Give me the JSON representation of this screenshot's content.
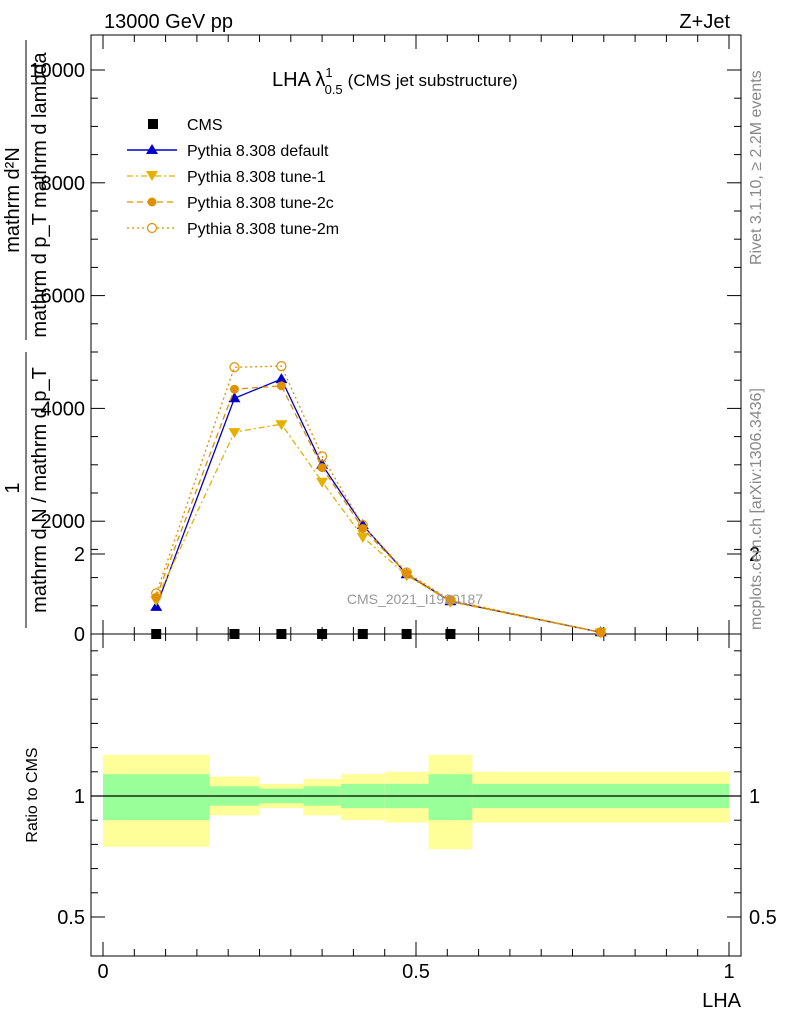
{
  "header": {
    "energy_label": "13000 GeV pp",
    "process_label": "Z+Jet"
  },
  "side_labels": {
    "rivet": "Rivet 3.1.10, ≥ 2.2M events",
    "mcplots": "mcplots.cern.ch [arXiv:1306.3436]"
  },
  "chart_data": [
    {
      "type": "line",
      "title": "LHA λ",
      "title_sup": "1",
      "title_sub": "0.5",
      "title_suffix": "(CMS jet substructure)",
      "watermark": "CMS_2021_I1920187",
      "ylabel_numerator": "1",
      "ylabel_denominator": "mathrm d N / mathrm d p_T",
      "ylabel_line1": "mathrm d²N",
      "ylabel_line2": "mathrm d p_T mathrm d lambda",
      "ylim": [
        0,
        10000
      ],
      "yticks": [
        {
          "value": 0,
          "label": "0"
        },
        {
          "value": 2000,
          "label": "2000"
        },
        {
          "value": 4000,
          "label": "4000"
        },
        {
          "value": 6000,
          "label": "6000"
        },
        {
          "value": 8000,
          "label": "8000"
        },
        {
          "value": 10000,
          "label": "10000"
        }
      ],
      "xlim": [
        -0.02,
        1.02
      ],
      "legend_position": "top-left",
      "series": [
        {
          "name": "CMS",
          "color": "#000000",
          "marker": "square",
          "dash": "",
          "x": [
            0.085,
            0.21,
            0.285,
            0.35,
            0.415,
            0.485,
            0.555
          ],
          "y": [
            0,
            0,
            0,
            0,
            0,
            0,
            0
          ]
        },
        {
          "name": "Pythia 8.308 default",
          "color": "#0000cc",
          "marker": "triangle-up",
          "dash": "",
          "x": [
            0.085,
            0.21,
            0.285,
            0.35,
            0.415,
            0.485,
            0.555,
            0.795
          ],
          "y": [
            480,
            4180,
            4520,
            3000,
            1930,
            1060,
            580,
            30
          ]
        },
        {
          "name": "Pythia 8.308 tune-1",
          "color": "#e6b000",
          "marker": "triangle-down",
          "dash": "6,3,2,3",
          "x": [
            0.085,
            0.21,
            0.285,
            0.35,
            0.415,
            0.485,
            0.555,
            0.795
          ],
          "y": [
            600,
            3580,
            3720,
            2700,
            1720,
            1040,
            570,
            30
          ]
        },
        {
          "name": "Pythia 8.308 tune-2c",
          "color": "#e09000",
          "marker": "circle",
          "dash": "6,4",
          "x": [
            0.085,
            0.21,
            0.285,
            0.35,
            0.415,
            0.485,
            0.555,
            0.795
          ],
          "y": [
            650,
            4340,
            4400,
            2950,
            1870,
            1070,
            590,
            30
          ]
        },
        {
          "name": "Pythia 8.308 tune-2m",
          "color": "#e09000",
          "marker": "circle-open",
          "dash": "2,3",
          "x": [
            0.085,
            0.21,
            0.285,
            0.35,
            0.415,
            0.485,
            0.555,
            0.795
          ],
          "y": [
            720,
            4730,
            4750,
            3150,
            1930,
            1090,
            600,
            30
          ]
        }
      ]
    },
    {
      "type": "area",
      "ylabel": "Ratio to CMS",
      "xlabel": "LHA",
      "ylim": [
        0.35,
        2.3
      ],
      "yticks": [
        {
          "value": 0.5,
          "label": "0.5"
        },
        {
          "value": 1,
          "label": "1"
        },
        {
          "value": 2,
          "label": "2"
        }
      ],
      "xticks": [
        {
          "value": 0,
          "label": "0"
        },
        {
          "value": 0.5,
          "label": "0.5"
        },
        {
          "value": 1,
          "label": "1"
        }
      ],
      "bins": [
        {
          "lo": 0.0,
          "hi": 0.17,
          "stat_lo": 0.9,
          "stat_hi": 1.09,
          "tot_lo": 0.79,
          "tot_hi": 1.17
        },
        {
          "lo": 0.17,
          "hi": 0.25,
          "stat_lo": 0.96,
          "stat_hi": 1.04,
          "tot_lo": 0.92,
          "tot_hi": 1.08
        },
        {
          "lo": 0.25,
          "hi": 0.32,
          "stat_lo": 0.97,
          "stat_hi": 1.03,
          "tot_lo": 0.95,
          "tot_hi": 1.05
        },
        {
          "lo": 0.32,
          "hi": 0.38,
          "stat_lo": 0.96,
          "stat_hi": 1.04,
          "tot_lo": 0.92,
          "tot_hi": 1.07
        },
        {
          "lo": 0.38,
          "hi": 0.45,
          "stat_lo": 0.95,
          "stat_hi": 1.05,
          "tot_lo": 0.9,
          "tot_hi": 1.09
        },
        {
          "lo": 0.45,
          "hi": 0.52,
          "stat_lo": 0.95,
          "stat_hi": 1.05,
          "tot_lo": 0.89,
          "tot_hi": 1.1
        },
        {
          "lo": 0.52,
          "hi": 0.59,
          "stat_lo": 0.9,
          "stat_hi": 1.09,
          "tot_lo": 0.78,
          "tot_hi": 1.17
        },
        {
          "lo": 0.59,
          "hi": 1.0,
          "stat_lo": 0.95,
          "stat_hi": 1.05,
          "tot_lo": 0.89,
          "tot_hi": 1.1
        }
      ],
      "stat_color": "#99ff99",
      "tot_color": "#ffff99",
      "reference": 1
    }
  ]
}
